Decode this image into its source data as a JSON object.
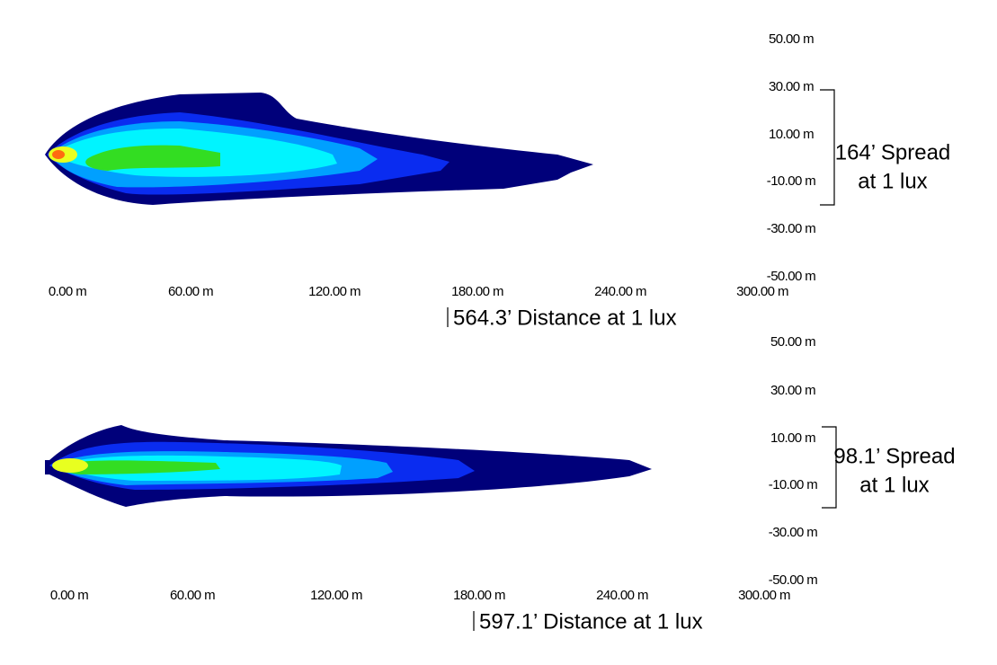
{
  "panels": [
    {
      "x_labels": [
        "0.00 m",
        "60.00 m",
        "120.00 m",
        "180.00 m",
        "240.00 m",
        "300.00 m"
      ],
      "y_labels": [
        "50.00 m",
        "30.00 m",
        "10.00 m",
        "-10.00 m",
        "-30.00 m",
        "-50.00 m"
      ],
      "spread": [
        "164’ Spread",
        "at 1 lux"
      ],
      "distance": "564.3’ Distance at 1 lux"
    },
    {
      "x_labels": [
        "0.00 m",
        "60.00 m",
        "120.00 m",
        "180.00 m",
        "240.00 m",
        "300.00 m"
      ],
      "y_labels": [
        "50.00 m",
        "30.00 m",
        "10.00 m",
        "-10.00 m",
        "-30.00 m",
        "-50.00 m"
      ],
      "spread": [
        "98.1’ Spread",
        "at 1 lux"
      ],
      "distance": "597.1’ Distance at 1 lux"
    }
  ]
}
